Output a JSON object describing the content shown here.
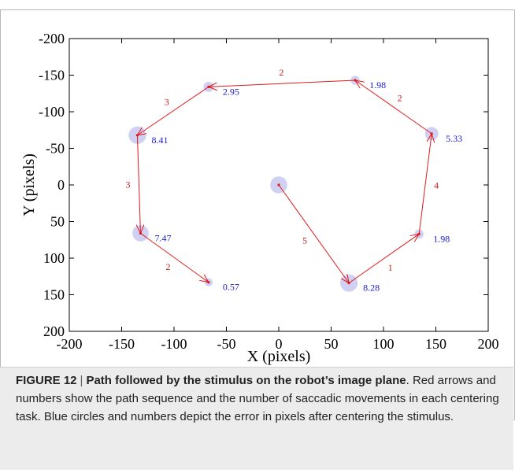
{
  "chart_data": {
    "type": "scatter",
    "xlabel": "X (pixels)",
    "ylabel": "Y (pixels)",
    "xlim": [
      -200,
      200
    ],
    "ylim": [
      -200,
      200
    ],
    "y_inverted": true,
    "xticks": [
      "-200",
      "-150",
      "-100",
      "-50",
      "0",
      "50",
      "100",
      "150",
      "200"
    ],
    "yticks": [
      "-200",
      "-150",
      "-100",
      "-50",
      "0",
      "50",
      "100",
      "150",
      "200"
    ],
    "grid": false,
    "stimulus_path": [
      [
        0,
        0
      ],
      [
        67,
        134
      ],
      [
        134,
        67
      ],
      [
        146,
        -70
      ],
      [
        73,
        -143
      ],
      [
        -67,
        -134
      ],
      [
        -135,
        -68
      ],
      [
        -132,
        66
      ],
      [
        -67,
        133
      ]
    ],
    "saccade_counts": [
      5,
      1,
      4,
      2,
      2,
      3,
      3,
      2
    ],
    "error_points": [
      {
        "x": 0,
        "y": 0,
        "error": null
      },
      {
        "x": 67,
        "y": 134,
        "error": "8.28"
      },
      {
        "x": 134,
        "y": 67,
        "error": "1.98"
      },
      {
        "x": 146,
        "y": -70,
        "error": "5.33"
      },
      {
        "x": 73,
        "y": -143,
        "error": "1.98"
      },
      {
        "x": -67,
        "y": -134,
        "error": "2.95"
      },
      {
        "x": -135,
        "y": -68,
        "error": "8.41"
      },
      {
        "x": -132,
        "y": 66,
        "error": "7.47"
      },
      {
        "x": -67,
        "y": 133,
        "error": "0.57"
      }
    ],
    "colors": {
      "path": "#e01a1a",
      "error_circle": "#c8c8f0",
      "error_text": "#1a1ad0",
      "count_text": "#d01a1a"
    }
  },
  "caption": {
    "label": "FIGURE 12",
    "separator": "|",
    "title": "Path followed by the stimulus on the robot’s image plane",
    "title_end": ".",
    "body": "Red arrows and numbers show the path sequence and the number of saccadic movements in each centering task. Blue circles and numbers depict the error in pixels after centering the stimulus."
  }
}
